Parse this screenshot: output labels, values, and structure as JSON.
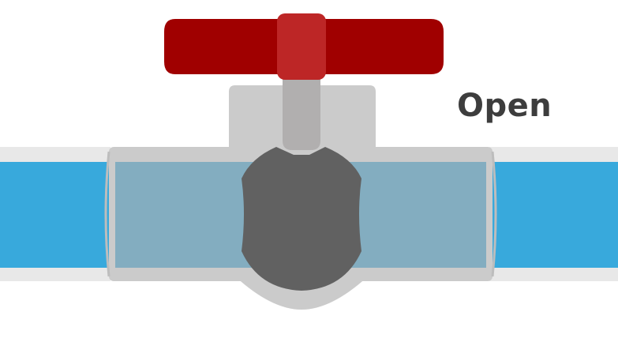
{
  "valve": {
    "state_label": "Open",
    "colors": {
      "pipe_wall": "#e8e8e8",
      "water": "#38a9dc",
      "water_in_body": "#83adc0",
      "body": "#cbcbcb",
      "body_outline": "#bdbdbd",
      "ball": "#616161",
      "stem": "#b1afaf",
      "handle": "#a00000",
      "handle_hub": "#bd2626",
      "label_text": "#3d3d3d"
    }
  }
}
